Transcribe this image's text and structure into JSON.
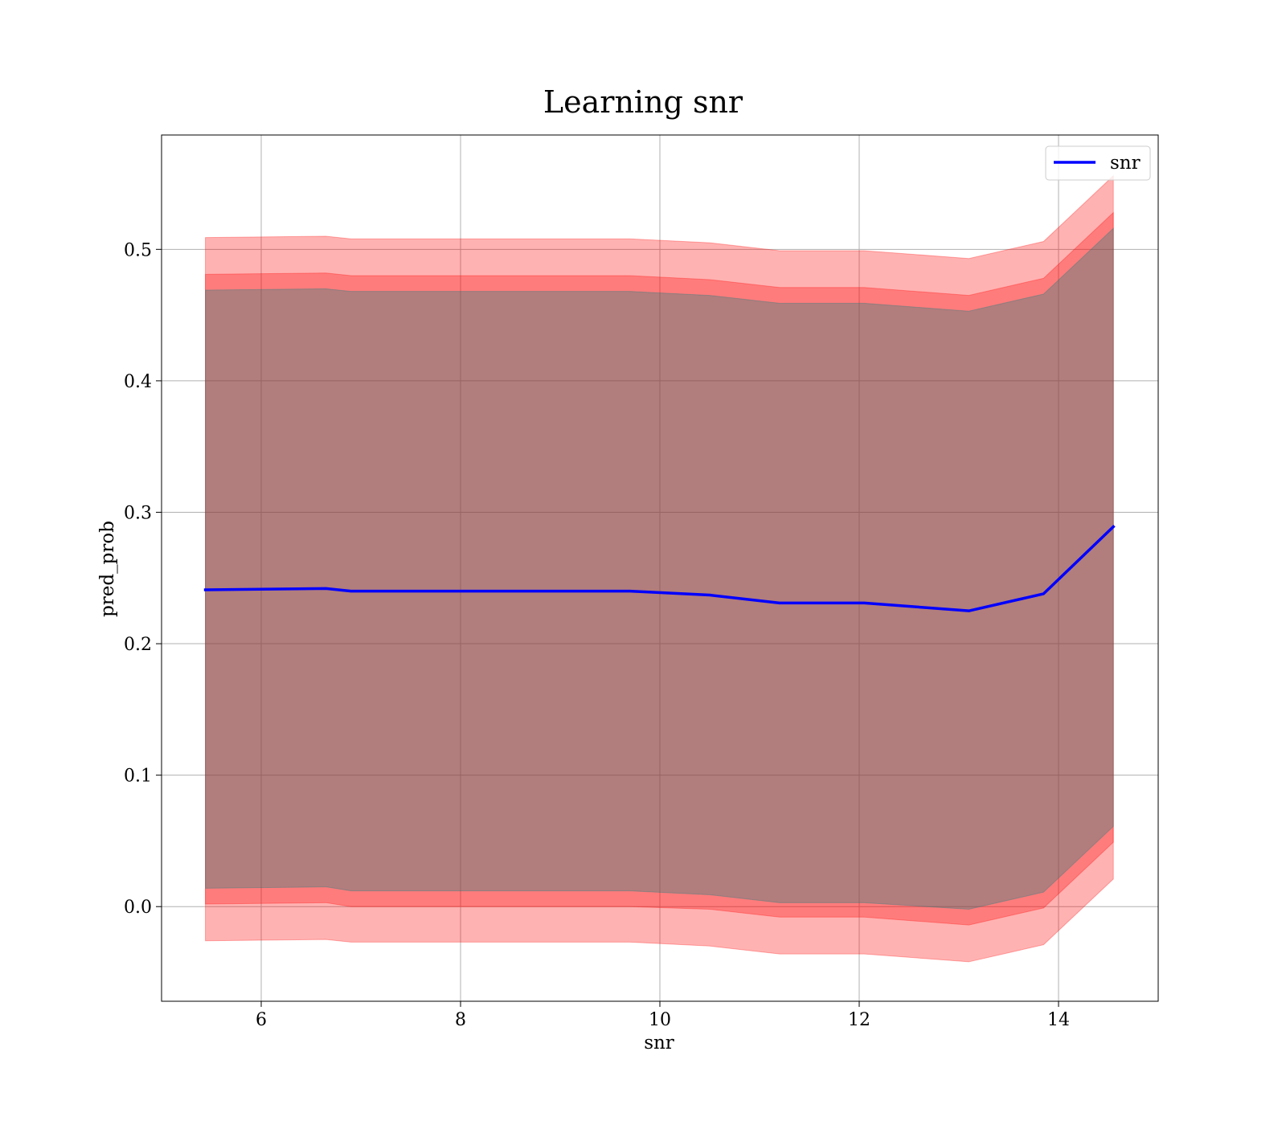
{
  "chart_data": {
    "type": "line",
    "title": "Learning snr",
    "xlabel": "snr",
    "ylabel": "pred_prob",
    "xlim": [
      5.0,
      15.0
    ],
    "ylim": [
      -0.072,
      0.587
    ],
    "xticks": [
      6,
      8,
      10,
      12,
      14
    ],
    "yticks": [
      0.0,
      0.1,
      0.2,
      0.3,
      0.4,
      0.5
    ],
    "xtick_labels": [
      "6",
      "8",
      "10",
      "12",
      "14"
    ],
    "ytick_labels": [
      "0.0",
      "0.1",
      "0.2",
      "0.3",
      "0.4",
      "0.5"
    ],
    "grid": true,
    "legend_position": "top-right",
    "x": [
      5.44,
      6.65,
      6.9,
      9.7,
      10.5,
      11.2,
      12.05,
      13.1,
      13.85,
      14.55
    ],
    "series": [
      {
        "name": "snr",
        "color": "#0000ff",
        "values": [
          0.241,
          0.242,
          0.24,
          0.24,
          0.237,
          0.231,
          0.231,
          0.225,
          0.238,
          0.289
        ]
      }
    ],
    "bands": [
      {
        "color": "#ff0000",
        "opacity": 0.3,
        "upper": [
          0.509,
          0.51,
          0.508,
          0.508,
          0.505,
          0.499,
          0.499,
          0.493,
          0.506,
          0.556
        ],
        "lower": [
          -0.026,
          -0.025,
          -0.027,
          -0.027,
          -0.03,
          -0.036,
          -0.036,
          -0.042,
          -0.029,
          0.021
        ]
      },
      {
        "color": "#ff0000",
        "opacity": 0.3,
        "upper": [
          0.481,
          0.482,
          0.48,
          0.48,
          0.477,
          0.471,
          0.471,
          0.465,
          0.478,
          0.528
        ],
        "lower": [
          0.002,
          0.003,
          0.0,
          0.0,
          -0.002,
          -0.008,
          -0.008,
          -0.014,
          -0.001,
          0.049
        ]
      },
      {
        "color": "#008080",
        "opacity": 0.3,
        "upper": [
          0.469,
          0.47,
          0.468,
          0.468,
          0.465,
          0.459,
          0.459,
          0.453,
          0.466,
          0.516
        ],
        "lower": [
          0.014,
          0.015,
          0.012,
          0.012,
          0.009,
          0.003,
          0.003,
          -0.002,
          0.011,
          0.061
        ]
      }
    ]
  }
}
